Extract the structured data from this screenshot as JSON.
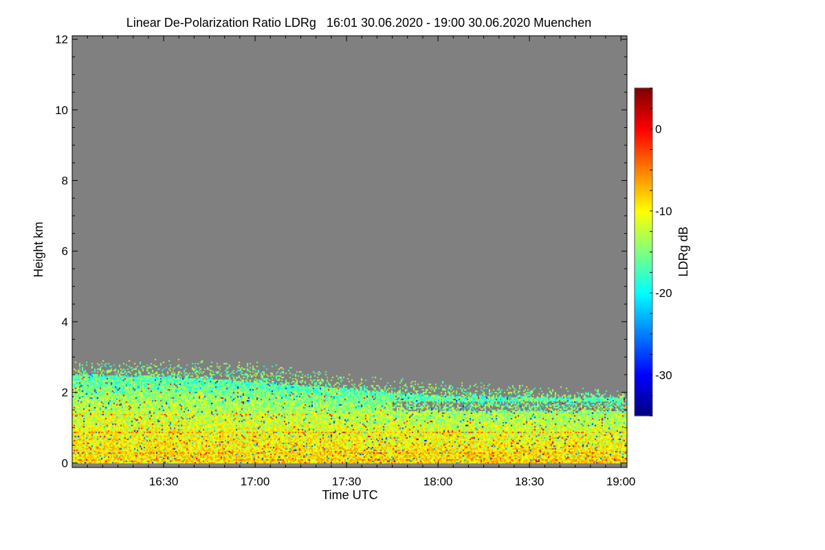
{
  "chart_data": {
    "type": "heatmap",
    "title": "Linear De-Polarization Ratio LDRg   16:01 30.06.2020 - 19:00 30.06.2020 Muenchen",
    "xlabel": "Time UTC",
    "ylabel": "Height km",
    "colorbar_label": "LDRg dB",
    "xlim_minutes_after_1600": [
      0,
      182
    ],
    "ylim": [
      -0.13,
      12.1
    ],
    "x_ticks": [
      {
        "label": "16:30",
        "minutes": 30
      },
      {
        "label": "17:00",
        "minutes": 60
      },
      {
        "label": "17:30",
        "minutes": 90
      },
      {
        "label": "18:00",
        "minutes": 120
      },
      {
        "label": "18:30",
        "minutes": 150
      },
      {
        "label": "19:00",
        "minutes": 180
      }
    ],
    "y_ticks": [
      0,
      2,
      4,
      6,
      8,
      10,
      12
    ],
    "colorbar_range": [
      -35,
      5
    ],
    "colorbar_ticks": [
      0,
      -10,
      -20,
      -30
    ],
    "colormap": "jet",
    "no_data_color": "#808080",
    "layer_profile": {
      "minutes": [
        0,
        30,
        60,
        90,
        120,
        150,
        182
      ],
      "sparse_top_km": [
        2.85,
        2.9,
        2.85,
        2.5,
        2.3,
        2.2,
        2.0
      ],
      "dense_top_km": [
        2.5,
        2.45,
        2.3,
        2.1,
        1.9,
        1.85,
        1.85
      ],
      "typical_ldr_db_near_ground": -10,
      "typical_ldr_db_near_layer_top": -17
    }
  }
}
